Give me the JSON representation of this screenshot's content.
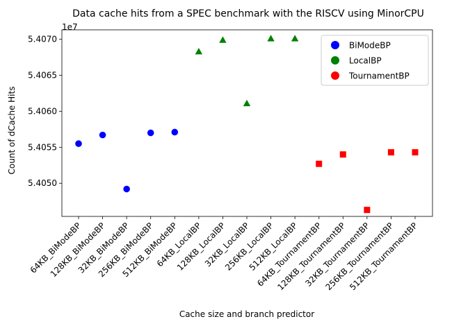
{
  "chart_data": {
    "type": "scatter",
    "title": "Data cache hits from a SPEC benchmark with the RISCV using MinorCPU",
    "xlabel": "Cache size and branch predictor",
    "ylabel": "Count of dCache Hits",
    "y_offset_label": "1e7",
    "y_scale": 10000000,
    "ylim": [
      5.40454,
      5.40713
    ],
    "yticks": [
      5.405,
      5.4055,
      5.406,
      5.4065,
      5.407
    ],
    "ytick_labels": [
      "5.4050",
      "5.4055",
      "5.4060",
      "5.4065",
      "5.4070"
    ],
    "categories": [
      "64KB_BiModeBP",
      "128KB_BiModeBP",
      "32KB_BiModeBP",
      "256KB_BiModeBP",
      "512KB_BiModeBP",
      "64KB_LocalBP",
      "128KB_LocalBP",
      "32KB_LocalBP",
      "256KB_LocalBP",
      "512KB_LocalBP",
      "64KB_TournamentBP",
      "128KB_TournamentBP",
      "32KB_TournamentBP",
      "256KB_TournamentBP",
      "512KB_TournamentBP"
    ],
    "series": [
      {
        "name": "BiModeBP",
        "color": "#0000ff",
        "marker": "circle",
        "points": [
          {
            "x": "64KB_BiModeBP",
            "y": 5.40555
          },
          {
            "x": "128KB_BiModeBP",
            "y": 5.40567
          },
          {
            "x": "32KB_BiModeBP",
            "y": 5.40492
          },
          {
            "x": "256KB_BiModeBP",
            "y": 5.4057
          },
          {
            "x": "512KB_BiModeBP",
            "y": 5.40571
          }
        ]
      },
      {
        "name": "LocalBP",
        "color": "#008000",
        "marker": "triangle",
        "points": [
          {
            "x": "64KB_LocalBP",
            "y": 5.40683
          },
          {
            "x": "128KB_LocalBP",
            "y": 5.40699
          },
          {
            "x": "32KB_LocalBP",
            "y": 5.40611
          },
          {
            "x": "256KB_LocalBP",
            "y": 5.40701
          },
          {
            "x": "512KB_LocalBP",
            "y": 5.40701
          }
        ]
      },
      {
        "name": "TournamentBP",
        "color": "#ff0000",
        "marker": "square",
        "points": [
          {
            "x": "64KB_TournamentBP",
            "y": 5.40527
          },
          {
            "x": "128KB_TournamentBP",
            "y": 5.4054
          },
          {
            "x": "32KB_TournamentBP",
            "y": 5.40463
          },
          {
            "x": "256KB_TournamentBP",
            "y": 5.40543
          },
          {
            "x": "512KB_TournamentBP",
            "y": 5.40543
          }
        ]
      }
    ],
    "legend": {
      "placement": "top-right",
      "entries": [
        "BiModeBP",
        "LocalBP",
        "TournamentBP"
      ]
    },
    "grid": false
  }
}
